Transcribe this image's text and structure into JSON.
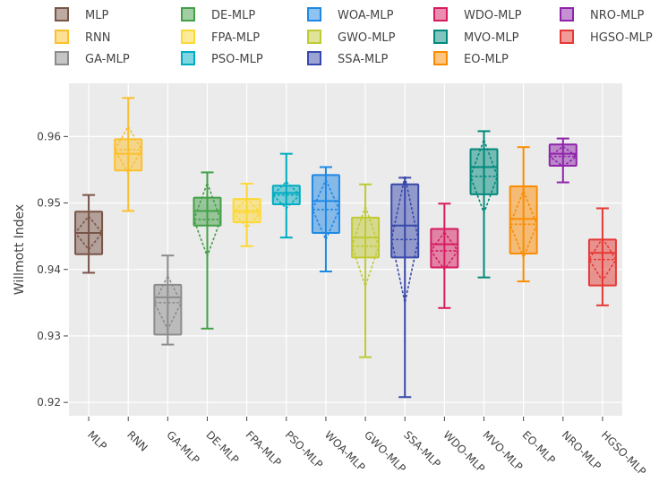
{
  "chart_data": {
    "type": "box",
    "ylabel": "Willmott Index",
    "ylim": [
      0.918,
      0.968
    ],
    "y_ticks": [
      0.92,
      0.93,
      0.94,
      0.95,
      0.96
    ],
    "y_tick_labels": [
      "0.92",
      "0.93",
      "0.94",
      "0.95",
      "0.96"
    ],
    "grid": true,
    "legend_position": "top",
    "categories": [
      "MLP",
      "RNN",
      "GA-MLP",
      "DE-MLP",
      "FPA-MLP",
      "PSO-MLP",
      "WOA-MLP",
      "GWO-MLP",
      "SSA-MLP",
      "WDO-MLP",
      "MVO-MLP",
      "EO-MLP",
      "NRO-MLP",
      "HGSO-MLP"
    ],
    "series": [
      {
        "name": "MLP",
        "color": "#795548",
        "min": 0.9395,
        "q1": 0.9423,
        "median": 0.9455,
        "q3": 0.9487,
        "max": 0.9512,
        "mean": 0.9455,
        "sd": 0.0025
      },
      {
        "name": "RNN",
        "color": "#fbc02d",
        "min": 0.9488,
        "q1": 0.9549,
        "median": 0.9574,
        "q3": 0.9596,
        "max": 0.9658,
        "mean": 0.958,
        "sd": 0.0035
      },
      {
        "name": "GA-MLP",
        "color": "#8c8c8c",
        "min": 0.9287,
        "q1": 0.9302,
        "median": 0.9358,
        "q3": 0.9377,
        "max": 0.9421,
        "mean": 0.935,
        "sd": 0.004
      },
      {
        "name": "DE-MLP",
        "color": "#43a047",
        "min": 0.9311,
        "q1": 0.9466,
        "median": 0.9488,
        "q3": 0.9508,
        "max": 0.9546,
        "mean": 0.9475,
        "sd": 0.0055
      },
      {
        "name": "FPA-MLP",
        "color": "#fdd835",
        "min": 0.9435,
        "q1": 0.9471,
        "median": 0.9488,
        "q3": 0.9506,
        "max": 0.9529,
        "mean": 0.9485,
        "sd": 0.0022
      },
      {
        "name": "PSO-MLP",
        "color": "#00acc1",
        "min": 0.9448,
        "q1": 0.9498,
        "median": 0.9515,
        "q3": 0.9526,
        "max": 0.9574,
        "mean": 0.9512,
        "sd": 0.002
      },
      {
        "name": "WOA-MLP",
        "color": "#1e88e5",
        "min": 0.9397,
        "q1": 0.9455,
        "median": 0.9503,
        "q3": 0.9542,
        "max": 0.9554,
        "mean": 0.949,
        "sd": 0.0045
      },
      {
        "name": "GWO-MLP",
        "color": "#c0ca33",
        "min": 0.9268,
        "q1": 0.9418,
        "median": 0.9448,
        "q3": 0.9478,
        "max": 0.9528,
        "mean": 0.9435,
        "sd": 0.006
      },
      {
        "name": "SSA-MLP",
        "color": "#3949ab",
        "min": 0.9208,
        "q1": 0.9418,
        "median": 0.9466,
        "q3": 0.9528,
        "max": 0.9538,
        "mean": 0.9445,
        "sd": 0.0095
      },
      {
        "name": "WDO-MLP",
        "color": "#d81b60",
        "min": 0.9342,
        "q1": 0.9403,
        "median": 0.9438,
        "q3": 0.9461,
        "max": 0.9499,
        "mean": 0.9428,
        "sd": 0.0028
      },
      {
        "name": "MVO-MLP",
        "color": "#00897b",
        "min": 0.9388,
        "q1": 0.9513,
        "median": 0.9554,
        "q3": 0.9581,
        "max": 0.9608,
        "mean": 0.954,
        "sd": 0.0055
      },
      {
        "name": "EO-MLP",
        "color": "#fb8c00",
        "min": 0.9382,
        "q1": 0.9424,
        "median": 0.9476,
        "q3": 0.9525,
        "max": 0.9584,
        "mean": 0.9468,
        "sd": 0.005
      },
      {
        "name": "NRO-MLP",
        "color": "#8e24aa",
        "min": 0.9531,
        "q1": 0.9556,
        "median": 0.9574,
        "q3": 0.9588,
        "max": 0.9597,
        "mean": 0.957,
        "sd": 0.0015
      },
      {
        "name": "HGSO-MLP",
        "color": "#e53935",
        "min": 0.9346,
        "q1": 0.9376,
        "median": 0.9425,
        "q3": 0.9445,
        "max": 0.9492,
        "mean": 0.9415,
        "sd": 0.0032
      }
    ],
    "legend_order": [
      "MLP",
      "RNN",
      "GA-MLP",
      "DE-MLP",
      "FPA-MLP",
      "PSO-MLP",
      "WOA-MLP",
      "GWO-MLP",
      "SSA-MLP",
      "WDO-MLP",
      "MVO-MLP",
      "EO-MLP",
      "NRO-MLP",
      "HGSO-MLP",
      "",
      ""
    ]
  }
}
